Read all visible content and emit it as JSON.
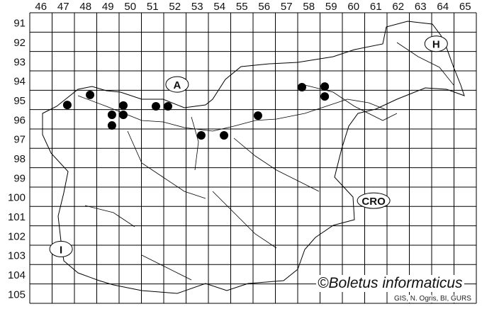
{
  "map": {
    "columns": [
      "46",
      "47",
      "48",
      "49",
      "50",
      "51",
      "52",
      "53",
      "54",
      "55",
      "56",
      "57",
      "58",
      "59",
      "60",
      "61",
      "62",
      "63",
      "64",
      "65"
    ],
    "rows": [
      "91",
      "92",
      "93",
      "94",
      "95",
      "96",
      "97",
      "98",
      "99",
      "100",
      "101",
      "102",
      "103",
      "104",
      "105"
    ],
    "country_labels": [
      {
        "text": "A",
        "col": 52.6,
        "row": 94.7
      },
      {
        "text": "H",
        "col": 64.2,
        "row": 92.6
      },
      {
        "text": "CRO",
        "col": 61.4,
        "row": 100.7
      },
      {
        "text": "I",
        "col": 47.4,
        "row": 103.2
      }
    ],
    "records": [
      [
        47.68,
        95.76
      ],
      [
        48.7,
        95.24
      ],
      [
        50.19,
        95.79
      ],
      [
        49.68,
        96.27
      ],
      [
        50.19,
        96.27
      ],
      [
        49.68,
        96.82
      ],
      [
        51.65,
        95.83
      ],
      [
        52.19,
        95.83
      ],
      [
        53.68,
        97.33
      ],
      [
        54.7,
        97.33
      ],
      [
        56.22,
        96.31
      ],
      [
        58.19,
        94.84
      ],
      [
        59.21,
        94.81
      ],
      [
        59.21,
        95.32
      ]
    ],
    "dot_color": "#000000",
    "line_color": "#000000"
  },
  "credit": "©Boletus informaticus",
  "source": "GIS, N. Ogris, BI, GURS"
}
